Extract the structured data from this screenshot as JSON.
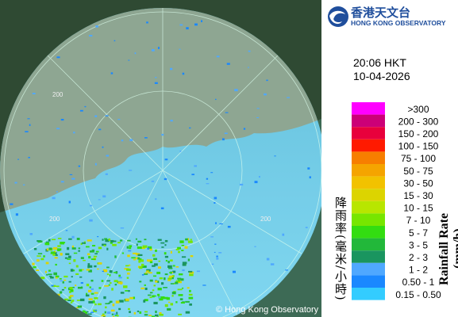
{
  "logo": {
    "chinese": "香港天文台",
    "english": "HONG KONG OBSERVATORY"
  },
  "time": "20:06 HKT",
  "date": "10-04-2026",
  "legend": {
    "title_zh": "降雨率(毫米/小時)",
    "title_en": "Rainfall Rate (mm/h)",
    "items": [
      {
        "label": ">300",
        "color": "#ff00ff"
      },
      {
        "label": "200 - 300",
        "color": "#cc0077"
      },
      {
        "label": "150 - 200",
        "color": "#e8003c"
      },
      {
        "label": "100 - 150",
        "color": "#ff1a00"
      },
      {
        "label": "75 - 100",
        "color": "#f77e00"
      },
      {
        "label": "50 - 75",
        "color": "#f5a400"
      },
      {
        "label": "30 - 50",
        "color": "#f2c200"
      },
      {
        "label": "15 - 30",
        "color": "#dcd400"
      },
      {
        "label": "10 - 15",
        "color": "#b8e600"
      },
      {
        "label": "7 - 10",
        "color": "#77e600"
      },
      {
        "label": "5 - 7",
        "color": "#33dd11"
      },
      {
        "label": "3 - 5",
        "color": "#22b83a"
      },
      {
        "label": "2 - 3",
        "color": "#1a955f"
      },
      {
        "label": "1 - 2",
        "color": "#4fa8ff"
      },
      {
        "label": "0.50 - 1",
        "color": "#1a88ff"
      },
      {
        "label": "0.15 - 0.50",
        "color": "#33ccff"
      }
    ]
  },
  "map": {
    "range_labels": [
      "200",
      "200",
      "200"
    ],
    "copyright": "© Hong Kong Observatory"
  }
}
